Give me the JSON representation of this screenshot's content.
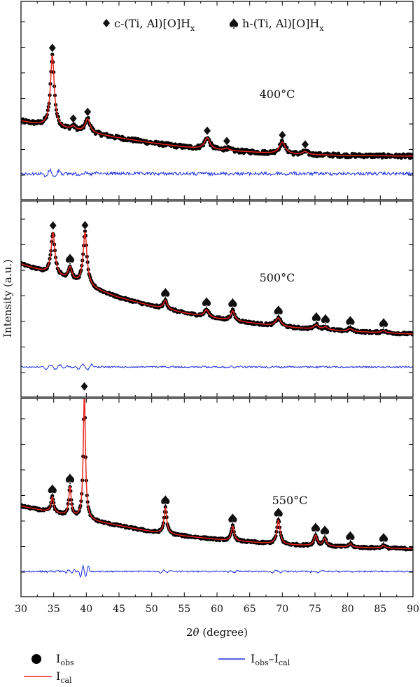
{
  "chart_data": {
    "type": "line",
    "xlabel_prefix": "2",
    "xlabel_theta": "θ",
    "xlabel_suffix": " (degree)",
    "ylabel": "Intensity (a.u.)",
    "xlim": [
      30,
      90
    ],
    "x_ticks": [
      30,
      35,
      40,
      45,
      50,
      55,
      60,
      65,
      70,
      75,
      80,
      85,
      90
    ],
    "phase_legend": [
      {
        "marker": "diamond",
        "text": "c-(Ti, Al)[O]H",
        "sub": "x"
      },
      {
        "marker": "spade",
        "text": "h-(Ti, Al)[O]H",
        "sub": "x"
      }
    ],
    "series_legend": [
      {
        "marker": "dot",
        "main": "I",
        "sub": "obs",
        "color": "#000000"
      },
      {
        "marker": "line",
        "main": "I",
        "sub": "cal",
        "color": "#e8261f"
      },
      {
        "marker": "line",
        "main": "I",
        "sub": "obs",
        "minus": "–I",
        "sub2": "cal",
        "color": "#1c2ee0"
      }
    ],
    "colors": {
      "observed": "#000000",
      "calculated": "#e8261f",
      "difference": "#1c2ee0"
    },
    "panels": [
      {
        "temperature": "400°C",
        "background": [
          [
            30,
            60
          ],
          [
            35,
            51
          ],
          [
            40,
            44
          ],
          [
            45,
            36
          ],
          [
            50,
            29
          ],
          [
            55,
            23
          ],
          [
            60,
            19
          ],
          [
            65,
            16
          ],
          [
            70,
            13
          ],
          [
            80,
            11
          ],
          [
            90,
            10
          ]
        ],
        "peaks": [
          {
            "x": 34.8,
            "h": 103,
            "w": 0.35,
            "marker": "diamond"
          },
          {
            "x": 38.0,
            "h": 5,
            "w": 0.4,
            "marker": "diamond"
          },
          {
            "x": 40.2,
            "h": 19,
            "w": 0.45,
            "marker": "diamond"
          },
          {
            "x": 58.5,
            "h": 16,
            "w": 0.5,
            "marker": "diamond"
          },
          {
            "x": 61.5,
            "h": 3,
            "w": 0.4,
            "marker": "diamond"
          },
          {
            "x": 70.0,
            "h": 17,
            "w": 0.55,
            "marker": "diamond"
          },
          {
            "x": 73.5,
            "h": 4,
            "w": 0.45,
            "marker": "diamond"
          }
        ]
      },
      {
        "temperature": "500°C",
        "background": [
          [
            30,
            56
          ],
          [
            35,
            48
          ],
          [
            40,
            40
          ],
          [
            45,
            32
          ],
          [
            50,
            26
          ],
          [
            55,
            21
          ],
          [
            60,
            17
          ],
          [
            65,
            14
          ],
          [
            70,
            11
          ],
          [
            80,
            8
          ],
          [
            90,
            6
          ]
        ],
        "peaks": [
          {
            "x": 34.9,
            "h": 30,
            "w": 0.35,
            "marker": "diamond"
          },
          {
            "x": 37.5,
            "h": 9,
            "w": 0.35,
            "marker": "spade"
          },
          {
            "x": 39.8,
            "h": 38,
            "w": 0.35,
            "marker": "diamond"
          },
          {
            "x": 52.1,
            "h": 6,
            "w": 0.35,
            "marker": "spade"
          },
          {
            "x": 58.4,
            "h": 5,
            "w": 0.4,
            "marker": "spade"
          },
          {
            "x": 62.4,
            "h": 7,
            "w": 0.35,
            "marker": "spade"
          },
          {
            "x": 69.4,
            "h": 6,
            "w": 0.5,
            "marker": "spade"
          },
          {
            "x": 75.2,
            "h": 3,
            "w": 0.4,
            "marker": "spade"
          },
          {
            "x": 76.6,
            "h": 2,
            "w": 0.4,
            "marker": "spade"
          },
          {
            "x": 80.4,
            "h": 2,
            "w": 0.4,
            "marker": "spade"
          },
          {
            "x": 85.5,
            "h": 1.5,
            "w": 0.4,
            "marker": "spade"
          }
        ]
      },
      {
        "temperature": "550°C",
        "background": [
          [
            30,
            56
          ],
          [
            35,
            48
          ],
          [
            40,
            40
          ],
          [
            45,
            33
          ],
          [
            50,
            26
          ],
          [
            55,
            21
          ],
          [
            60,
            17
          ],
          [
            65,
            14
          ],
          [
            70,
            11
          ],
          [
            80,
            8
          ],
          [
            90,
            6
          ]
        ],
        "peaks": [
          {
            "x": 34.8,
            "h": 18,
            "w": 0.25,
            "marker": "spade"
          },
          {
            "x": 37.5,
            "h": 34,
            "w": 0.22,
            "marker": "spade"
          },
          {
            "x": 39.7,
            "h": 147,
            "w": 0.2,
            "marker": "diamond"
          },
          {
            "x": 52.1,
            "h": 30,
            "w": 0.25,
            "marker": "spade"
          },
          {
            "x": 62.4,
            "h": 17,
            "w": 0.25,
            "marker": "spade"
          },
          {
            "x": 69.4,
            "h": 28,
            "w": 0.3,
            "marker": "spade"
          },
          {
            "x": 75.1,
            "h": 12,
            "w": 0.3,
            "marker": "spade"
          },
          {
            "x": 76.5,
            "h": 9,
            "w": 0.3,
            "marker": "spade"
          },
          {
            "x": 80.4,
            "h": 4,
            "w": 0.3,
            "marker": "spade"
          },
          {
            "x": 85.5,
            "h": 3,
            "w": 0.3,
            "marker": "spade"
          }
        ]
      }
    ]
  }
}
